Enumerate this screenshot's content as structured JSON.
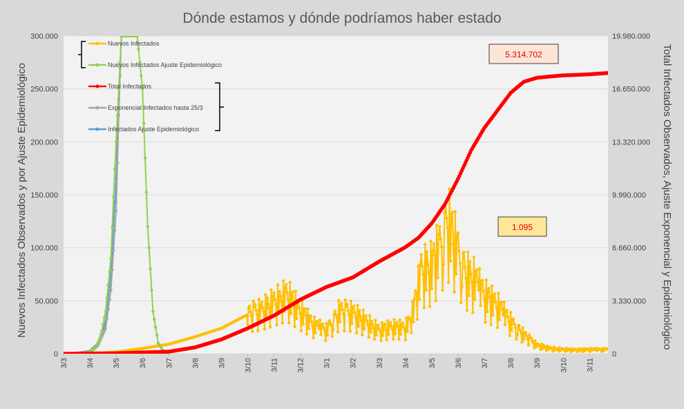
{
  "chart_data": {
    "type": "line",
    "title": "Dónde estamos y dónde podríamos haber estado",
    "ylabel_left": "Nuevos Infectados Observados y por Ajuste Epidemiológico",
    "ylabel_right": "Total Infectados Observados, Ajuste Exponencial y Epidemiológico",
    "left_ticks": [
      "0",
      "50.000",
      "100.000",
      "150.000",
      "200.000",
      "250.000",
      "300.000"
    ],
    "right_ticks": [
      "0",
      "3.330.000",
      "6.660.000",
      "9.990.000",
      "13.320.000",
      "16.650.000",
      "19.980.000"
    ],
    "ylim_left": [
      0,
      300000
    ],
    "ylim_right": [
      0,
      19980000
    ],
    "x_ticks": [
      "3/3",
      "3/4",
      "3/5",
      "3/6",
      "3/7",
      "3/8",
      "3/9",
      "3/10",
      "3/11",
      "3/12",
      "3/1",
      "3/2",
      "3/3",
      "3/4",
      "3/5",
      "3/6",
      "3/7",
      "3/8",
      "3/9",
      "3/10",
      "3/11"
    ],
    "x_range": [
      0,
      20.7
    ],
    "grid": true,
    "legend_position": "top-left",
    "series": [
      {
        "name": "Nuevos Infectados",
        "axis": "left",
        "color": "#ffc000",
        "x": [
          0,
          1,
          2,
          3,
          4,
          5,
          6,
          7,
          7.5,
          8,
          8.5,
          9,
          9.5,
          10,
          10.5,
          11,
          11.5,
          12,
          12.5,
          13,
          13.3,
          13.6,
          14,
          14.3,
          14.6,
          15,
          15.3,
          15.6,
          16,
          16.5,
          17,
          17.5,
          18,
          18.5,
          19,
          19.5,
          20,
          20.5,
          20.7
        ],
        "y": [
          0,
          300,
          1500,
          5000,
          9000,
          16000,
          24000,
          37000,
          40000,
          48000,
          55000,
          40000,
          27000,
          22000,
          40000,
          38000,
          30000,
          22000,
          25000,
          24000,
          40000,
          78000,
          82000,
          100000,
          125000,
          95000,
          75000,
          70000,
          55000,
          45000,
          30000,
          18000,
          8000,
          5000,
          4000,
          3500,
          4000,
          3800,
          4500
        ]
      },
      {
        "name": "Nuevos Infectados Ajuste Epidemiológico",
        "axis": "left",
        "color": "#92d050",
        "x": [
          0,
          0.5,
          1,
          1.2,
          1.4,
          1.6,
          1.8,
          1.9,
          2.0,
          2.2,
          2.4,
          2.6,
          2.8,
          3.0,
          3.2,
          3.4,
          3.6,
          3.8,
          4
        ],
        "y": [
          0,
          200,
          1500,
          5000,
          15000,
          40000,
          90000,
          148000,
          200000,
          300000,
          300000,
          300000,
          300000,
          250000,
          120000,
          40000,
          10000,
          2000,
          0
        ]
      },
      {
        "name": "Total Infectados",
        "axis": "right",
        "color": "#ff0000",
        "x": [
          0,
          2,
          4,
          5,
          6,
          7,
          8,
          9,
          10,
          11,
          12,
          13,
          13.5,
          14,
          14.5,
          15,
          15.5,
          16,
          16.5,
          17,
          17.5,
          18,
          18.5,
          19,
          19.5,
          20,
          20.7
        ],
        "y": [
          0,
          30000,
          130000,
          400000,
          900000,
          1600000,
          2400000,
          3400000,
          4200000,
          4800000,
          5800000,
          6700000,
          7300000,
          8200000,
          9400000,
          11000000,
          12800000,
          14200000,
          15300000,
          16400000,
          17100000,
          17350000,
          17430000,
          17500000,
          17530000,
          17570000,
          17650000
        ]
      },
      {
        "name": "Exponencial Infectados hasta 25/3",
        "axis": "right",
        "color": "#a5a5a5",
        "x": [
          0,
          0.5,
          1,
          1.3,
          1.6,
          1.8,
          2.0,
          2.1,
          2.2
        ],
        "y": [
          0,
          20000,
          120000,
          500000,
          1600000,
          4000000,
          9000000,
          15000000,
          19980000
        ]
      },
      {
        "name": "Infectados Ajuste Epidemiológico",
        "axis": "right",
        "color": "#5b9bd5",
        "x": [
          0,
          0.5,
          1,
          1.3,
          1.6,
          1.8,
          2.0,
          2.1,
          2.2
        ],
        "y": [
          0,
          20000,
          150000,
          600000,
          2000000,
          5000000,
          11000000,
          16000000,
          19980000
        ]
      }
    ],
    "annotations": [
      {
        "text": "5.314.702",
        "bg": "#fce4d6",
        "near_series": "Total Infectados"
      },
      {
        "text": "1.095",
        "bg": "#ffe699",
        "near_series": "Nuevos Infectados"
      }
    ]
  }
}
